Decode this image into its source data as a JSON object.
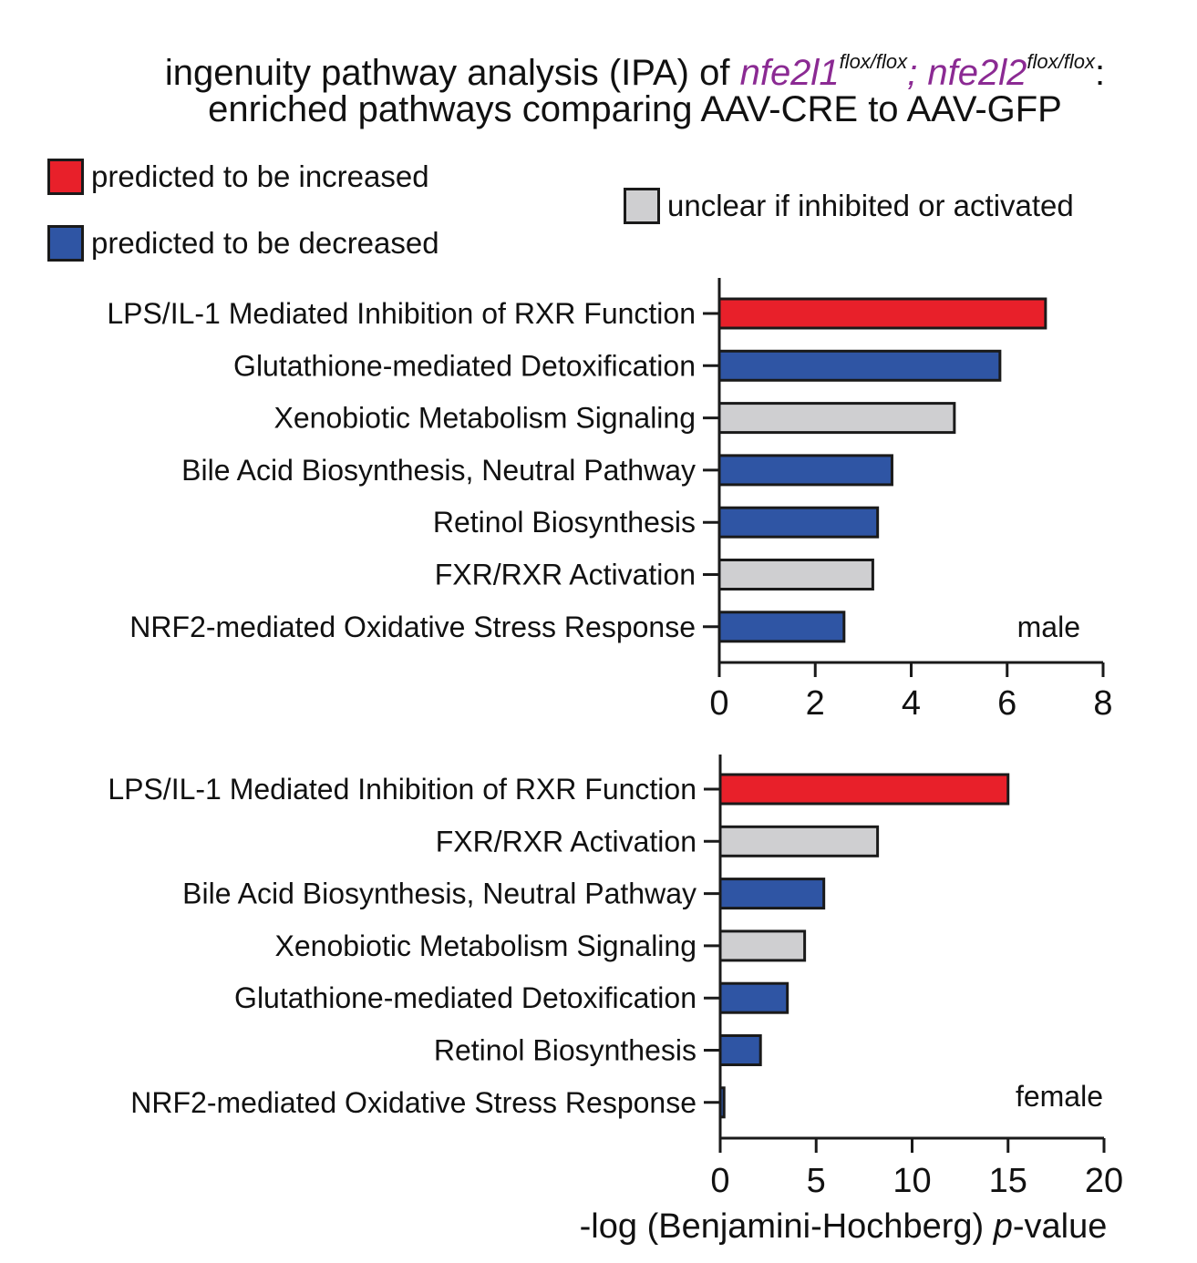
{
  "title": {
    "line1_prefix": "ingenuity pathway analysis (IPA) of ",
    "gene1": "nfe2l1",
    "gene1_sup": "flox/flox",
    "separator": "; ",
    "gene2": "nfe2l2",
    "gene2_sup": "flox/flox",
    "line1_suffix": ":",
    "line2": "enriched pathways comparing AAV-CRE to AAV-GFP"
  },
  "legend": [
    {
      "label": "predicted to be increased",
      "color": "#e8202a"
    },
    {
      "label": "predicted to be decreased",
      "color": "#2f55a4"
    },
    {
      "label": "unclear if inhibited or activated",
      "color": "#cfcfd1"
    }
  ],
  "colors": {
    "increased": "#e8202a",
    "decreased": "#2f55a4",
    "unclear": "#cfcfd1",
    "title_gene": "#8b2a93"
  },
  "chart_data": [
    {
      "type": "bar",
      "orientation": "horizontal",
      "panel_label": "male",
      "xlim": [
        0,
        8
      ],
      "xticks": [
        0,
        2,
        4,
        6,
        8
      ],
      "xlabel": "",
      "categories": [
        "LPS/IL-1 Mediated Inhibition of RXR Function",
        "Glutathione-mediated Detoxification",
        "Xenobiotic Metabolism Signaling",
        "Bile Acid Biosynthesis, Neutral Pathway",
        "Retinol Biosynthesis",
        "FXR/RXR Activation",
        "NRF2-mediated Oxidative Stress Response"
      ],
      "values": [
        6.8,
        5.85,
        4.9,
        3.6,
        3.3,
        3.2,
        2.6
      ],
      "status": [
        "increased",
        "decreased",
        "unclear",
        "decreased",
        "decreased",
        "unclear",
        "decreased"
      ]
    },
    {
      "type": "bar",
      "orientation": "horizontal",
      "panel_label": "female",
      "xlim": [
        0,
        20
      ],
      "xticks": [
        0,
        5,
        10,
        15,
        20
      ],
      "xlabel": "-log (Benjamini-Hochberg) p-value",
      "categories": [
        "LPS/IL-1 Mediated Inhibition of RXR Function",
        "FXR/RXR Activation",
        "Bile Acid Biosynthesis, Neutral Pathway",
        "Xenobiotic Metabolism Signaling",
        "Glutathione-mediated Detoxification",
        "Retinol Biosynthesis",
        "NRF2-mediated Oxidative Stress Response"
      ],
      "values": [
        15.0,
        8.2,
        5.4,
        4.4,
        3.5,
        2.1,
        0.2
      ],
      "status": [
        "increased",
        "unclear",
        "decreased",
        "unclear",
        "decreased",
        "decreased",
        "decreased"
      ]
    }
  ]
}
